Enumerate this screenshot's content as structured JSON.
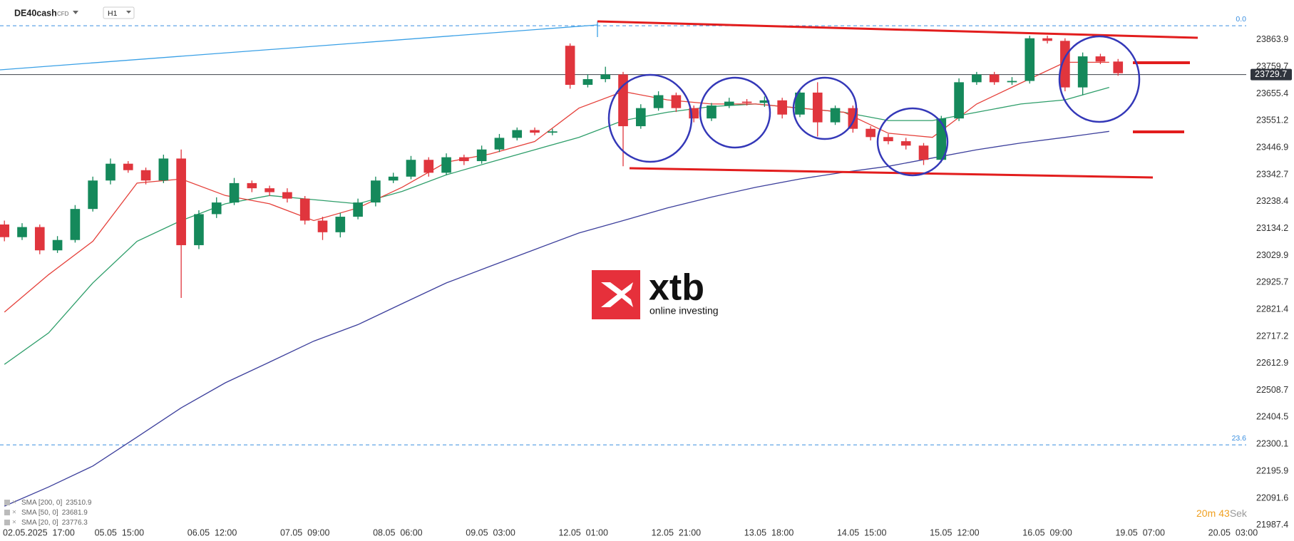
{
  "chart_data": {
    "type": "candlestick",
    "symbol": "DE40cash",
    "symbol_tag": "CFD",
    "timeframe": "H1",
    "up_color": "#15895b",
    "down_color": "#e0353d",
    "x": [
      0,
      4,
      8,
      12,
      16,
      20,
      24,
      28,
      32,
      36,
      40,
      44,
      48,
      52,
      56,
      60,
      64,
      68,
      72,
      76,
      80,
      84,
      88,
      92,
      96,
      100,
      104,
      108,
      112,
      116,
      120,
      124,
      128,
      132,
      136,
      140,
      144,
      148,
      152,
      156,
      160,
      164,
      168,
      172,
      176,
      180,
      184,
      188,
      192,
      196,
      200,
      204,
      208,
      212,
      216,
      220,
      224,
      228,
      232,
      236,
      240,
      244,
      248,
      252
    ],
    "open": [
      23150,
      23101,
      23140,
      23050,
      23090,
      23210,
      23320,
      23385,
      23360,
      23320,
      23405,
      23070,
      23190,
      23235,
      23310,
      23290,
      23275,
      23250,
      23165,
      23120,
      23180,
      23235,
      23320,
      23335,
      23400,
      23350,
      23410,
      23395,
      23440,
      23485,
      23515,
      23505,
      23841,
      23690,
      23712,
      23730,
      23530,
      23600,
      23650,
      23600,
      23560,
      23610,
      23625,
      23620,
      23630,
      23575,
      23660,
      23545,
      23600,
      23520,
      23488,
      23472,
      23455,
      23400,
      23560,
      23700,
      23730,
      23700,
      23705,
      23870,
      23860,
      23680,
      23800,
      23780
    ],
    "high": [
      23165,
      23155,
      23150,
      23105,
      23225,
      23335,
      23405,
      23395,
      23370,
      23420,
      23440,
      23205,
      23255,
      23330,
      23320,
      23300,
      23290,
      23260,
      23180,
      23195,
      23250,
      23335,
      23350,
      23415,
      23410,
      23425,
      23420,
      23455,
      23500,
      23525,
      23525,
      23520,
      23850,
      23730,
      23760,
      23740,
      23615,
      23665,
      23660,
      23610,
      23620,
      23640,
      23635,
      23645,
      23640,
      23670,
      23700,
      23610,
      23610,
      23530,
      23500,
      23485,
      23465,
      23570,
      23715,
      23740,
      23740,
      23720,
      23880,
      23880,
      23870,
      23815,
      23810,
      23790
    ],
    "low": [
      23085,
      23090,
      23035,
      23040,
      23080,
      23200,
      23305,
      23350,
      23305,
      23310,
      22866,
      23055,
      23175,
      23225,
      23275,
      23260,
      23235,
      23150,
      23090,
      23100,
      23170,
      23220,
      23310,
      23325,
      23335,
      23340,
      23380,
      23385,
      23430,
      23475,
      23495,
      23495,
      23675,
      23680,
      23700,
      23375,
      23520,
      23590,
      23585,
      23545,
      23550,
      23600,
      23610,
      23605,
      23560,
      23565,
      23490,
      23535,
      23505,
      23475,
      23460,
      23440,
      23380,
      23390,
      23550,
      23690,
      23690,
      23690,
      23695,
      23850,
      23665,
      23650,
      23770,
      23725
    ],
    "close": [
      23101,
      23140,
      23050,
      23090,
      23210,
      23320,
      23385,
      23360,
      23320,
      23405,
      23070,
      23190,
      23235,
      23310,
      23290,
      23275,
      23250,
      23165,
      23120,
      23180,
      23235,
      23320,
      23335,
      23400,
      23350,
      23410,
      23395,
      23440,
      23485,
      23515,
      23505,
      23510,
      23690,
      23712,
      23730,
      23530,
      23600,
      23650,
      23600,
      23560,
      23610,
      23625,
      23620,
      23630,
      23575,
      23660,
      23545,
      23600,
      23520,
      23488,
      23472,
      23455,
      23400,
      23560,
      23700,
      23730,
      23700,
      23705,
      23870,
      23860,
      23680,
      23800,
      23780,
      23735
    ],
    "lines": [
      {
        "name": "SMA [200, 0]",
        "last": 23510.9,
        "color": "#3c3f9c",
        "x": [
          0,
          10,
          20,
          30,
          40,
          50,
          60,
          70,
          80,
          90,
          100,
          110,
          120,
          130,
          140,
          150,
          160,
          170,
          180,
          190,
          200,
          210,
          220,
          230,
          240,
          250
        ],
        "values": [
          22061,
          22135,
          22216,
          22328,
          22441,
          22538,
          22618,
          22699,
          22763,
          22844,
          22924,
          22989,
          23053,
          23117,
          23165,
          23214,
          23256,
          23294,
          23326,
          23352,
          23375,
          23407,
          23439,
          23465,
          23487,
          23510
        ]
      },
      {
        "name": "SMA [50, 0]",
        "last": 23681.9,
        "color": "#2e9e6a",
        "x": [
          0,
          10,
          20,
          30,
          40,
          50,
          60,
          70,
          80,
          90,
          100,
          110,
          120,
          130,
          140,
          150,
          160,
          170,
          180,
          190,
          200,
          210,
          220,
          230,
          240,
          250
        ],
        "values": [
          22609,
          22731,
          22924,
          23085,
          23165,
          23230,
          23262,
          23246,
          23230,
          23278,
          23342,
          23391,
          23439,
          23487,
          23552,
          23584,
          23606,
          23616,
          23600,
          23584,
          23552,
          23552,
          23584,
          23616,
          23632,
          23680
        ]
      },
      {
        "name": "SMA [20, 0]",
        "last": 23776.3,
        "color": "#e5403a",
        "x": [
          0,
          10,
          20,
          30,
          40,
          50,
          60,
          70,
          80,
          90,
          100,
          110,
          120,
          130,
          140,
          150,
          160,
          170,
          180,
          190,
          200,
          210,
          220,
          230,
          240,
          250
        ],
        "values": [
          22811,
          22956,
          23085,
          23310,
          23326,
          23262,
          23230,
          23165,
          23214,
          23294,
          23391,
          23423,
          23471,
          23600,
          23664,
          23632,
          23616,
          23616,
          23600,
          23584,
          23503,
          23487,
          23616,
          23697,
          23777,
          23777
        ]
      }
    ],
    "xlim": [
      -1,
      281
    ],
    "xticks": [
      {
        "value": 5,
        "label": "02.05.2025  17:00"
      },
      {
        "value": 26,
        "label": "05.05  15:00"
      },
      {
        "value": 47,
        "label": "06.05  12:00"
      },
      {
        "value": 68,
        "label": "07.05  09:00"
      },
      {
        "value": 89,
        "label": "08.05  06:00"
      },
      {
        "value": 110,
        "label": "09.05  03:00"
      },
      {
        "value": 131,
        "label": "12.05  01:00"
      },
      {
        "value": 152,
        "label": "12.05  21:00"
      },
      {
        "value": 173,
        "label": "13.05  18:00"
      },
      {
        "value": 194,
        "label": "14.05  15:00"
      },
      {
        "value": 215,
        "label": "15.05  12:00"
      },
      {
        "value": 236,
        "label": "16.05  09:00"
      },
      {
        "value": 257,
        "label": "19.05  07:00"
      },
      {
        "value": 278,
        "label": "20.05  03:00"
      }
    ],
    "ylim": [
      21984,
      24018
    ],
    "yticks": [
      21987.4,
      22091.6,
      22195.9,
      22300.1,
      22404.5,
      22508.7,
      22612.9,
      22717.2,
      22821.4,
      22925.7,
      23029.9,
      23134.2,
      23238.4,
      23342.7,
      23446.9,
      23551.2,
      23655.4,
      23759.7,
      23863.9
    ],
    "last_price": 23729.7,
    "fib_levels": [
      {
        "price": 23918.6,
        "label": "0.0"
      },
      {
        "price": 22298,
        "label": "23.6"
      }
    ],
    "logo": {
      "name": "xtb",
      "tagline": "online investing"
    },
    "timer": {
      "minutes": "20m",
      "seconds": "43",
      "unit": "Sek"
    }
  }
}
